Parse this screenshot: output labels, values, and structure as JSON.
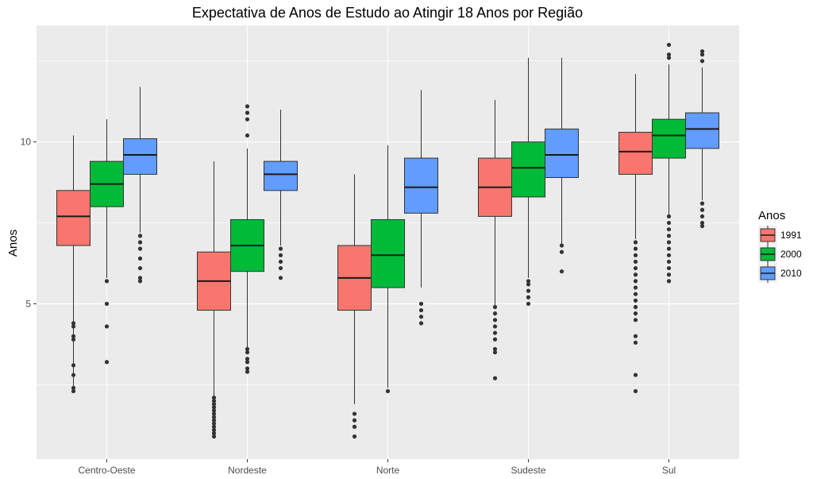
{
  "chart_data": {
    "type": "boxplot",
    "title": "Expectativa de Anos de Estudo ao Atingir 18 Anos por Região",
    "xlabel": "",
    "ylabel": "Anos",
    "ylim": [
      0.2,
      13.6
    ],
    "yticks": [
      5,
      10
    ],
    "grid": true,
    "legend": {
      "title": "Anos",
      "position": "right"
    },
    "categories": [
      "Centro-Oeste",
      "Nordeste",
      "Norte",
      "Sudeste",
      "Sul"
    ],
    "series": [
      {
        "name": "1991",
        "color": "#F8766D",
        "boxes": [
          {
            "whisker_low": 2.3,
            "q1": 6.8,
            "median": 7.7,
            "q3": 8.5,
            "whisker_high": 10.2,
            "outliers": [
              4.4,
              4.3,
              4.0,
              3.9,
              3.1,
              2.8,
              2.4,
              2.3
            ]
          },
          {
            "whisker_low": 2.1,
            "q1": 4.8,
            "median": 5.7,
            "q3": 6.6,
            "whisker_high": 9.4,
            "outliers": [
              2.1,
              2.0,
              1.9,
              1.8,
              1.7,
              1.6,
              1.5,
              1.4,
              1.3,
              1.2,
              1.1,
              1.0,
              0.9
            ]
          },
          {
            "whisker_low": 1.9,
            "q1": 4.8,
            "median": 5.8,
            "q3": 6.8,
            "whisker_high": 9.0,
            "outliers": [
              1.6,
              1.4,
              1.2,
              0.9
            ]
          },
          {
            "whisker_low": 4.9,
            "q1": 7.7,
            "median": 8.6,
            "q3": 9.5,
            "whisker_high": 11.3,
            "outliers": [
              4.9,
              4.7,
              4.5,
              4.3,
              4.1,
              3.9,
              3.6,
              3.5,
              2.7
            ]
          },
          {
            "whisker_low": 7.0,
            "q1": 9.0,
            "median": 9.7,
            "q3": 10.3,
            "whisker_high": 12.1,
            "outliers": [
              6.9,
              6.7,
              6.5,
              6.3,
              6.1,
              5.9,
              5.7,
              5.5,
              5.3,
              5.1,
              4.9,
              4.7,
              4.5,
              4.0,
              3.8,
              2.8,
              2.3
            ]
          }
        ]
      },
      {
        "name": "2000",
        "color": "#00BA38",
        "boxes": [
          {
            "whisker_low": 5.8,
            "q1": 8.0,
            "median": 8.7,
            "q3": 9.4,
            "whisker_high": 10.7,
            "outliers": [
              5.7,
              5.0,
              4.3,
              3.2
            ]
          },
          {
            "whisker_low": 3.6,
            "q1": 6.0,
            "median": 6.8,
            "q3": 7.6,
            "whisker_high": 9.8,
            "outliers": [
              11.1,
              10.9,
              10.7,
              10.2,
              3.6,
              3.5,
              3.3,
              3.2,
              3.0,
              2.9
            ]
          },
          {
            "whisker_low": 2.4,
            "q1": 5.5,
            "median": 6.5,
            "q3": 7.6,
            "whisker_high": 9.9,
            "outliers": [
              2.3
            ]
          },
          {
            "whisker_low": 5.8,
            "q1": 8.3,
            "median": 9.2,
            "q3": 10.0,
            "whisker_high": 12.6,
            "outliers": [
              5.7,
              5.6,
              5.4,
              5.2,
              5.0
            ]
          },
          {
            "whisker_low": 7.7,
            "q1": 9.5,
            "median": 10.2,
            "q3": 10.7,
            "whisker_high": 12.4,
            "outliers": [
              13.0,
              12.7,
              12.6,
              7.7,
              7.5,
              7.3,
              7.1,
              6.9,
              6.7,
              6.5,
              6.3,
              6.1,
              5.9,
              5.7
            ]
          }
        ]
      },
      {
        "name": "2010",
        "color": "#619CFF",
        "boxes": [
          {
            "whisker_low": 7.2,
            "q1": 9.0,
            "median": 9.6,
            "q3": 10.1,
            "whisker_high": 11.7,
            "outliers": [
              7.1,
              6.9,
              6.7,
              6.4,
              6.1,
              5.8,
              5.7
            ]
          },
          {
            "whisker_low": 6.8,
            "q1": 8.5,
            "median": 9.0,
            "q3": 9.4,
            "whisker_high": 11.0,
            "outliers": [
              6.7,
              6.5,
              6.3,
              6.1,
              5.8
            ]
          },
          {
            "whisker_low": 5.5,
            "q1": 7.8,
            "median": 8.6,
            "q3": 9.5,
            "whisker_high": 11.6,
            "outliers": [
              5.0,
              4.8,
              4.6,
              4.4
            ]
          },
          {
            "whisker_low": 6.8,
            "q1": 8.9,
            "median": 9.6,
            "q3": 10.4,
            "whisker_high": 12.6,
            "outliers": [
              6.8,
              6.6,
              6.0
            ]
          },
          {
            "whisker_low": 8.2,
            "q1": 9.8,
            "median": 10.4,
            "q3": 10.9,
            "whisker_high": 12.3,
            "outliers": [
              12.8,
              12.7,
              12.5,
              8.1,
              7.9,
              7.7,
              7.5,
              7.4
            ]
          }
        ]
      }
    ]
  }
}
